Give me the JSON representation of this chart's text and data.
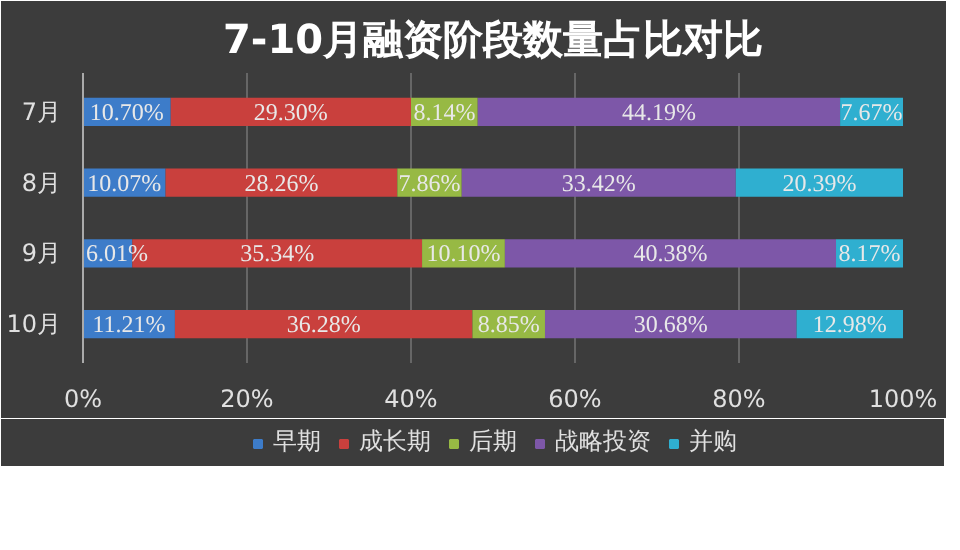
{
  "chart_data": {
    "type": "bar",
    "title": "7-10月融资阶段数量占比对比",
    "orientation": "horizontal",
    "stacked": true,
    "categories": [
      "7月",
      "8月",
      "9月",
      "10月"
    ],
    "xlim": [
      0,
      100
    ],
    "xticks": [
      {
        "value": 0,
        "label": "0%"
      },
      {
        "value": 20,
        "label": "20%"
      },
      {
        "value": 40,
        "label": "40%"
      },
      {
        "value": 60,
        "label": "60%"
      },
      {
        "value": 80,
        "label": "80%"
      },
      {
        "value": 100,
        "label": "100%"
      }
    ],
    "grid": "x",
    "legend": "bottom",
    "series": [
      {
        "name": "早期",
        "color": "#3d7cc9",
        "values": [
          10.7,
          10.07,
          6.01,
          11.21
        ],
        "value_labels": [
          "10.70%",
          "10.07%",
          "6.01%",
          "11.21%"
        ]
      },
      {
        "name": "成长期",
        "color": "#c9403d",
        "values": [
          29.3,
          28.26,
          35.34,
          36.28
        ],
        "value_labels": [
          "29.30%",
          "28.26%",
          "35.34%",
          "36.28%"
        ]
      },
      {
        "name": "后期",
        "color": "#97b944",
        "values": [
          8.14,
          7.86,
          10.1,
          8.85
        ],
        "value_labels": [
          "8.14%",
          "7.86%",
          "10.10%",
          "8.85%"
        ]
      },
      {
        "name": "战略投资",
        "color": "#7d57a8",
        "values": [
          44.19,
          33.42,
          40.38,
          30.68
        ],
        "value_labels": [
          "44.19%",
          "33.42%",
          "40.38%",
          "30.68%"
        ]
      },
      {
        "name": "并购",
        "color": "#2fafd0",
        "values": [
          7.67,
          20.39,
          8.17,
          12.98
        ],
        "value_labels": [
          "7.67%",
          "20.39%",
          "8.17%",
          "12.98%"
        ]
      }
    ]
  }
}
